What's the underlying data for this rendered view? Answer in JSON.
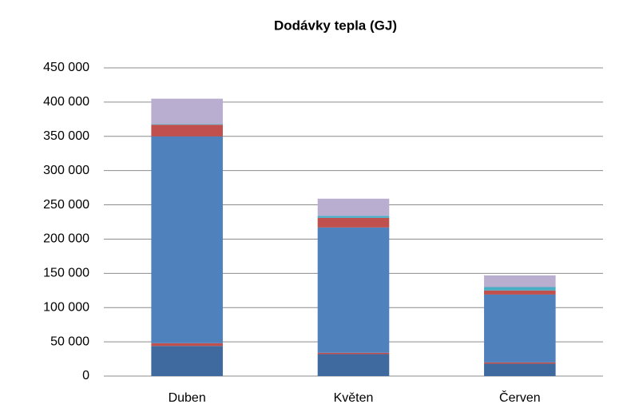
{
  "chart_data": {
    "type": "stacked_bar",
    "title": "Dodávky tepla (GJ)",
    "categories": [
      "Duben",
      "Květen",
      "Červen"
    ],
    "series": [
      {
        "color": "#3f6aa0",
        "values": [
          44000,
          32000,
          18000
        ]
      },
      {
        "color": "#c0504d",
        "values": [
          4000,
          2000,
          2000
        ]
      },
      {
        "color": "#4f81bd",
        "values": [
          302000,
          183000,
          99000
        ]
      },
      {
        "color": "#c0504d",
        "values": [
          17000,
          14000,
          6000
        ]
      },
      {
        "color": "#4bacc6",
        "values": [
          1000,
          3000,
          5000
        ]
      },
      {
        "color": "#b9aed0",
        "values": [
          37000,
          25000,
          17000
        ]
      }
    ],
    "ylim": [
      0,
      450000
    ],
    "yticks": [
      0,
      {
        "value": 50000,
        "label": "50 000"
      },
      {
        "value": 100000,
        "label": "100 000"
      },
      {
        "value": 150000,
        "label": "150 000"
      },
      {
        "value": 200000,
        "label": "200 000"
      },
      {
        "value": 250000,
        "label": "250 000"
      },
      {
        "value": 300000,
        "label": "300 000"
      },
      {
        "value": 350000,
        "label": "350 000"
      },
      {
        "value": 400000,
        "label": "400 000"
      },
      {
        "value": 450000,
        "label": "450 000"
      }
    ],
    "grid": true
  }
}
